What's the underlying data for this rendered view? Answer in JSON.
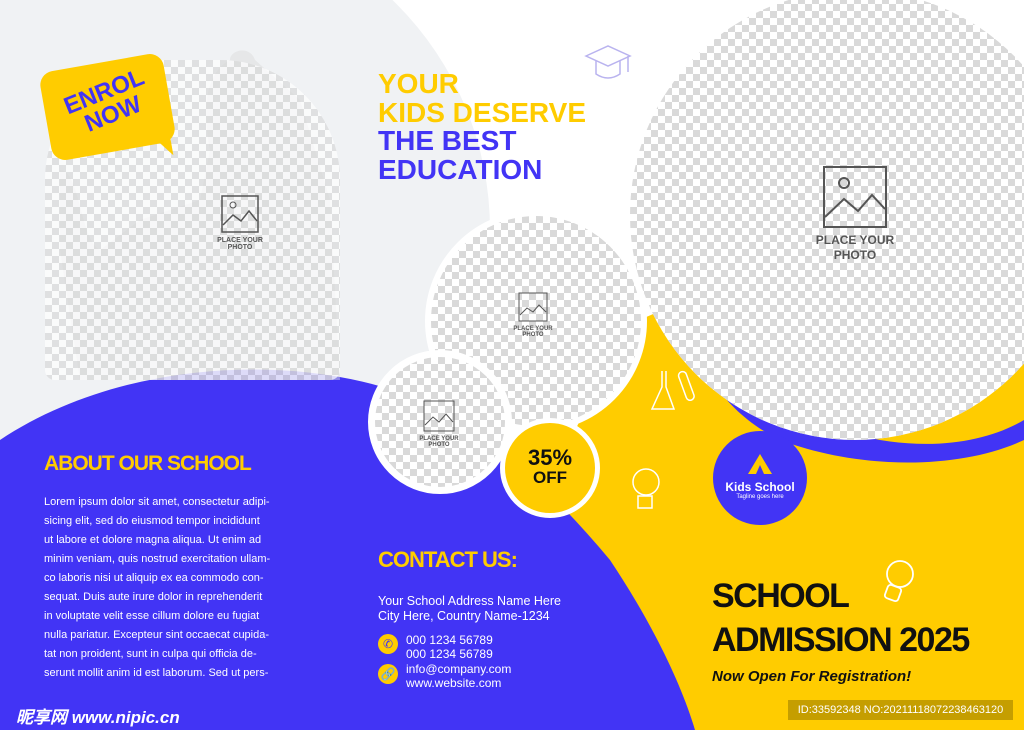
{
  "colors": {
    "blue": "#4234f5",
    "yellow": "#ffcc00",
    "light_gray": "#f0f2f4",
    "dark": "#111111"
  },
  "badge": {
    "line1": "ENROL",
    "line2": "NOW"
  },
  "headline": {
    "line1": "YOUR",
    "line2": "KIDS DESERVE",
    "line3": "THE BEST",
    "line4": "EDUCATION"
  },
  "placeholders": {
    "line1": "PLACE YOUR",
    "line2": "PHOTO",
    "icon": "image-icon"
  },
  "about": {
    "title": "ABOUT OUR SCHOOL",
    "lines": [
      "Lorem ipsum dolor sit amet, consectetur adipi-",
      "sicing elit, sed do eiusmod tempor incididunt",
      "ut labore et dolore magna aliqua. Ut enim ad",
      "minim veniam, quis nostrud exercitation ullam-",
      "co laboris nisi ut aliquip ex ea commodo con-",
      "sequat. Duis aute irure dolor in reprehenderit",
      "in voluptate velit esse cillum dolore eu fugiat",
      "nulla pariatur. Excepteur sint occaecat cupida-",
      "tat non proident, sunt in culpa qui officia de-",
      "serunt mollit anim id est laborum. Sed ut pers-"
    ]
  },
  "discount": {
    "value": "35%",
    "label": "OFF"
  },
  "logo": {
    "name": "Kids School",
    "tagline": "Tagline goes here"
  },
  "contact": {
    "title": "CONTACT US:",
    "address1": "Your School Address  Name Here",
    "address2": "City Here, Country Name-1234",
    "phone1": "000 1234 56789",
    "phone2": "000 1234 56789",
    "email": "info@company.com",
    "website": "www.website.com",
    "phone_icon": "phone-icon",
    "link_icon": "link-icon"
  },
  "admission": {
    "line1": "SCHOOL",
    "line2": "ADMISSION 2025",
    "subtitle": "Now Open For Registration!"
  },
  "watermark": {
    "brand": "昵享网 www.nipic.cn",
    "id": "ID:33592348 NO:20211118072238463120"
  }
}
